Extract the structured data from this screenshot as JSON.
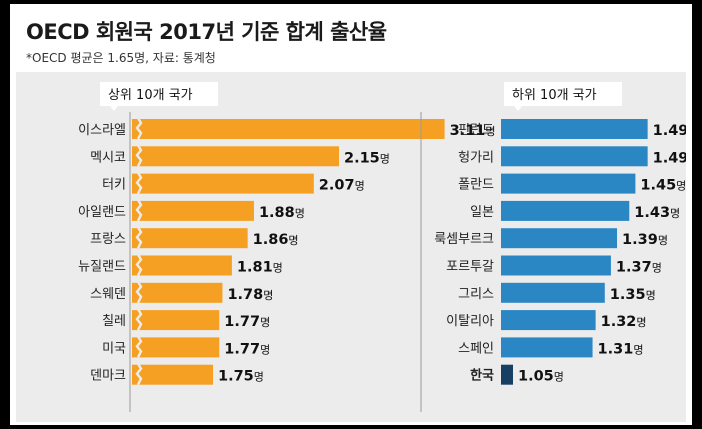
{
  "title": "OECD 회원국 2017년 기준 합계 출산율",
  "subtitle": "*OECD 평균은 1.65명, 자료: 통계청",
  "colors": {
    "top_bar": "#f5a023",
    "bottom_bar": "#2b87c4",
    "highlight_bar": "#163f63",
    "panel": "#ececec"
  },
  "chart_data": [
    {
      "type": "bar",
      "orientation": "horizontal",
      "title": "상위 10개 국가",
      "unit": "명",
      "categories": [
        "이스라엘",
        "멕시코",
        "터키",
        "아일랜드",
        "프랑스",
        "뉴질랜드",
        "스웨덴",
        "칠레",
        "미국",
        "덴마크"
      ],
      "values": [
        3.11,
        2.15,
        2.07,
        1.88,
        1.86,
        1.81,
        1.78,
        1.77,
        1.77,
        1.75
      ],
      "labels": [
        "3.11",
        "2.15",
        "2.07",
        "1.88",
        "1.86",
        "1.81",
        "1.78",
        "1.77",
        "1.77",
        "1.75"
      ],
      "axis_break": true
    },
    {
      "type": "bar",
      "orientation": "horizontal",
      "title": "하위 10개 국가",
      "unit": "명",
      "categories": [
        "핀란드",
        "헝가리",
        "폴란드",
        "일본",
        "룩셈부르크",
        "포르투갈",
        "그리스",
        "이탈리아",
        "스페인",
        "한국"
      ],
      "values": [
        1.49,
        1.49,
        1.45,
        1.43,
        1.39,
        1.37,
        1.35,
        1.32,
        1.31,
        1.05
      ],
      "labels": [
        "1.49",
        "1.49",
        "1.45",
        "1.43",
        "1.39",
        "1.37",
        "1.35",
        "1.32",
        "1.31",
        "1.05"
      ],
      "highlight": "한국"
    }
  ]
}
